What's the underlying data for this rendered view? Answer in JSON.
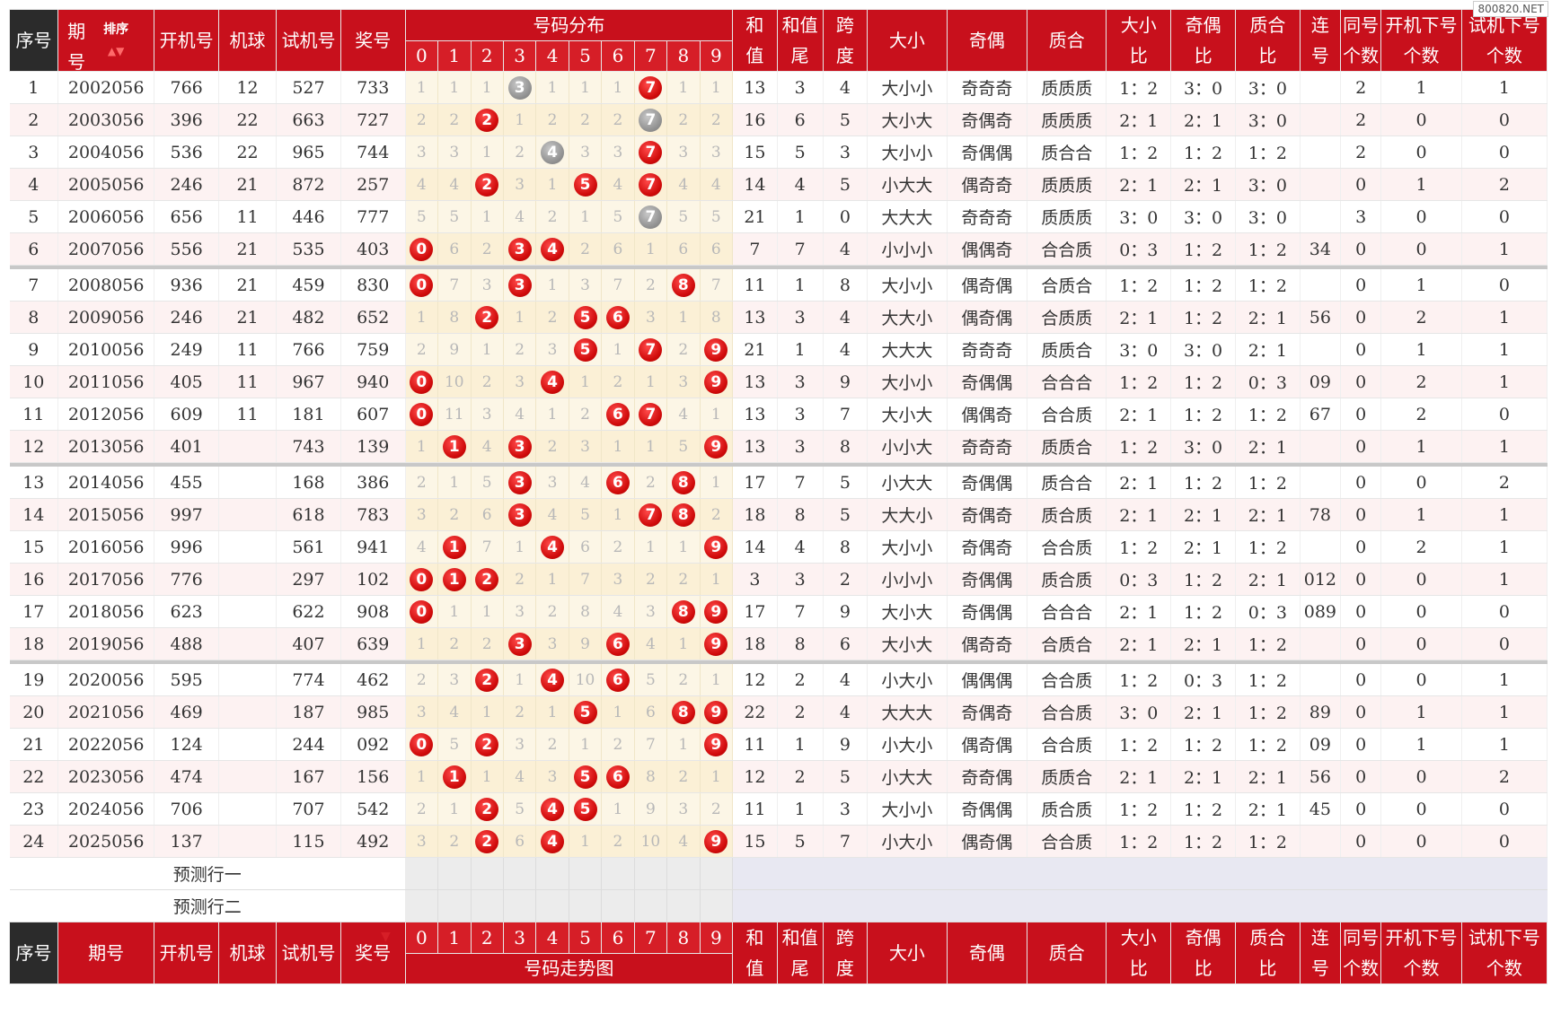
{
  "watermark": "800820.NET",
  "header": {
    "seq": "序号",
    "period_top": "期",
    "period_bottom": "号",
    "sort_label": "排序",
    "open": "开机号",
    "machine": "机球",
    "test": "试机号",
    "prize": "奖号",
    "dist_title": "号码分布",
    "sum_top": "和",
    "sum_bottom": "值",
    "tail_top": "和值",
    "tail_bottom": "尾",
    "span_top": "跨",
    "span_bottom": "度",
    "size": "大小",
    "parity": "奇偶",
    "prime": "质合",
    "r1_top": "大小",
    "r1_bottom": "比",
    "r2_top": "奇偶",
    "r2_bottom": "比",
    "r3_top": "质合",
    "r3_bottom": "比",
    "con_top": "连",
    "con_bottom": "号",
    "same_top": "同号",
    "same_bottom": "个数",
    "onext_top": "开机下号",
    "onext_bottom": "个数",
    "tnext_top": "试机下号",
    "tnext_bottom": "个数",
    "digits": [
      "0",
      "1",
      "2",
      "3",
      "4",
      "5",
      "6",
      "7",
      "8",
      "9"
    ]
  },
  "footer": {
    "seq": "序号",
    "period": "期号",
    "open": "开机号",
    "machine": "机球",
    "test": "试机号",
    "prize": "奖号",
    "dist_title": "号码走势图"
  },
  "prediction": [
    "预测行一",
    "预测行二"
  ],
  "colors": {
    "red": "#c8101c",
    "dark": "#2b2b2b",
    "ball_red": "#d40b0b",
    "ball_gray": "#8d8d8d"
  },
  "rows": [
    {
      "seq": "1",
      "period": "2002056",
      "open": "766",
      "ball": "12",
      "test": "527",
      "prize": "733",
      "dist": [
        "1",
        "1",
        "1",
        "3",
        "1",
        "1",
        "1",
        "7",
        "1",
        "1"
      ],
      "hits": {
        "3": "gray",
        "7": "red"
      },
      "sum": "13",
      "tail": "3",
      "span": "4",
      "size": "大小小",
      "parity": "奇奇奇",
      "prime": "质质质",
      "r1": "1：2",
      "r2": "3：0",
      "r3": "3：0",
      "con": "",
      "same": "2",
      "onext": "1",
      "tnext": "1"
    },
    {
      "seq": "2",
      "period": "2003056",
      "open": "396",
      "ball": "22",
      "test": "663",
      "prize": "727",
      "dist": [
        "2",
        "2",
        "2",
        "1",
        "2",
        "2",
        "2",
        "7",
        "2",
        "2"
      ],
      "hits": {
        "2": "red",
        "7": "gray"
      },
      "sum": "16",
      "tail": "6",
      "span": "5",
      "size": "大小大",
      "parity": "奇偶奇",
      "prime": "质质质",
      "r1": "2：1",
      "r2": "2：1",
      "r3": "3：0",
      "con": "",
      "same": "2",
      "onext": "0",
      "tnext": "0"
    },
    {
      "seq": "3",
      "period": "2004056",
      "open": "536",
      "ball": "22",
      "test": "965",
      "prize": "744",
      "dist": [
        "3",
        "3",
        "1",
        "2",
        "4",
        "3",
        "3",
        "7",
        "3",
        "3"
      ],
      "hits": {
        "4": "gray",
        "7": "red"
      },
      "sum": "15",
      "tail": "5",
      "span": "3",
      "size": "大小小",
      "parity": "奇偶偶",
      "prime": "质合合",
      "r1": "1：2",
      "r2": "1：2",
      "r3": "1：2",
      "con": "",
      "same": "2",
      "onext": "0",
      "tnext": "0"
    },
    {
      "seq": "4",
      "period": "2005056",
      "open": "246",
      "ball": "21",
      "test": "872",
      "prize": "257",
      "dist": [
        "4",
        "4",
        "2",
        "3",
        "1",
        "5",
        "4",
        "7",
        "4",
        "4"
      ],
      "hits": {
        "2": "red",
        "5": "red",
        "7": "red"
      },
      "sum": "14",
      "tail": "4",
      "span": "5",
      "size": "小大大",
      "parity": "偶奇奇",
      "prime": "质质质",
      "r1": "2：1",
      "r2": "2：1",
      "r3": "3：0",
      "con": "",
      "same": "0",
      "onext": "1",
      "tnext": "2"
    },
    {
      "seq": "5",
      "period": "2006056",
      "open": "656",
      "ball": "11",
      "test": "446",
      "prize": "777",
      "dist": [
        "5",
        "5",
        "1",
        "4",
        "2",
        "1",
        "5",
        "7",
        "5",
        "5"
      ],
      "hits": {
        "7": "gray"
      },
      "sum": "21",
      "tail": "1",
      "span": "0",
      "size": "大大大",
      "parity": "奇奇奇",
      "prime": "质质质",
      "r1": "3：0",
      "r2": "3：0",
      "r3": "3：0",
      "con": "",
      "same": "3",
      "onext": "0",
      "tnext": "0"
    },
    {
      "seq": "6",
      "period": "2007056",
      "open": "556",
      "ball": "21",
      "test": "535",
      "prize": "403",
      "dist": [
        "0",
        "6",
        "2",
        "3",
        "4",
        "2",
        "6",
        "1",
        "6",
        "6"
      ],
      "hits": {
        "0": "red",
        "3": "red",
        "4": "red"
      },
      "sum": "7",
      "tail": "7",
      "span": "4",
      "size": "小小小",
      "parity": "偶偶奇",
      "prime": "合合质",
      "r1": "0：3",
      "r2": "1：2",
      "r3": "1：2",
      "con": "34",
      "same": "0",
      "onext": "0",
      "tnext": "1"
    },
    {
      "seq": "7",
      "period": "2008056",
      "open": "936",
      "ball": "21",
      "test": "459",
      "prize": "830",
      "dist": [
        "0",
        "7",
        "3",
        "3",
        "1",
        "3",
        "7",
        "2",
        "8",
        "7"
      ],
      "hits": {
        "0": "red",
        "3": "red",
        "8": "red"
      },
      "sum": "11",
      "tail": "1",
      "span": "8",
      "size": "大小小",
      "parity": "偶奇偶",
      "prime": "合质合",
      "r1": "1：2",
      "r2": "1：2",
      "r3": "1：2",
      "con": "",
      "same": "0",
      "onext": "1",
      "tnext": "0"
    },
    {
      "seq": "8",
      "period": "2009056",
      "open": "246",
      "ball": "21",
      "test": "482",
      "prize": "652",
      "dist": [
        "1",
        "8",
        "2",
        "1",
        "2",
        "5",
        "6",
        "3",
        "1",
        "8"
      ],
      "hits": {
        "2": "red",
        "5": "red",
        "6": "red"
      },
      "sum": "13",
      "tail": "3",
      "span": "4",
      "size": "大大小",
      "parity": "偶奇偶",
      "prime": "合质质",
      "r1": "2：1",
      "r2": "1：2",
      "r3": "2：1",
      "con": "56",
      "same": "0",
      "onext": "2",
      "tnext": "1"
    },
    {
      "seq": "9",
      "period": "2010056",
      "open": "249",
      "ball": "11",
      "test": "766",
      "prize": "759",
      "dist": [
        "2",
        "9",
        "1",
        "2",
        "3",
        "5",
        "1",
        "7",
        "2",
        "9"
      ],
      "hits": {
        "5": "red",
        "7": "red",
        "9": "red"
      },
      "sum": "21",
      "tail": "1",
      "span": "4",
      "size": "大大大",
      "parity": "奇奇奇",
      "prime": "质质合",
      "r1": "3：0",
      "r2": "3：0",
      "r3": "2：1",
      "con": "",
      "same": "0",
      "onext": "1",
      "tnext": "1"
    },
    {
      "seq": "10",
      "period": "2011056",
      "open": "405",
      "ball": "11",
      "test": "967",
      "prize": "940",
      "dist": [
        "0",
        "10",
        "2",
        "3",
        "4",
        "1",
        "2",
        "1",
        "3",
        "9"
      ],
      "hits": {
        "0": "red",
        "4": "red",
        "9": "red"
      },
      "sum": "13",
      "tail": "3",
      "span": "9",
      "size": "大小小",
      "parity": "奇偶偶",
      "prime": "合合合",
      "r1": "1：2",
      "r2": "1：2",
      "r3": "0：3",
      "con": "09",
      "same": "0",
      "onext": "2",
      "tnext": "1"
    },
    {
      "seq": "11",
      "period": "2012056",
      "open": "609",
      "ball": "11",
      "test": "181",
      "prize": "607",
      "dist": [
        "0",
        "11",
        "3",
        "4",
        "1",
        "2",
        "6",
        "7",
        "4",
        "1"
      ],
      "hits": {
        "0": "red",
        "6": "red",
        "7": "red"
      },
      "sum": "13",
      "tail": "3",
      "span": "7",
      "size": "大小大",
      "parity": "偶偶奇",
      "prime": "合合质",
      "r1": "2：1",
      "r2": "1：2",
      "r3": "1：2",
      "con": "67",
      "same": "0",
      "onext": "2",
      "tnext": "0"
    },
    {
      "seq": "12",
      "period": "2013056",
      "open": "401",
      "ball": "",
      "test": "743",
      "prize": "139",
      "dist": [
        "1",
        "1",
        "4",
        "3",
        "2",
        "3",
        "1",
        "1",
        "5",
        "9"
      ],
      "hits": {
        "1": "red",
        "3": "red",
        "9": "red"
      },
      "sum": "13",
      "tail": "3",
      "span": "8",
      "size": "小小大",
      "parity": "奇奇奇",
      "prime": "质质合",
      "r1": "1：2",
      "r2": "3：0",
      "r3": "2：1",
      "con": "",
      "same": "0",
      "onext": "1",
      "tnext": "1"
    },
    {
      "seq": "13",
      "period": "2014056",
      "open": "455",
      "ball": "",
      "test": "168",
      "prize": "386",
      "dist": [
        "2",
        "1",
        "5",
        "3",
        "3",
        "4",
        "6",
        "2",
        "8",
        "1"
      ],
      "hits": {
        "3": "red",
        "6": "red",
        "8": "red"
      },
      "sum": "17",
      "tail": "7",
      "span": "5",
      "size": "小大大",
      "parity": "奇偶偶",
      "prime": "质合合",
      "r1": "2：1",
      "r2": "1：2",
      "r3": "1：2",
      "con": "",
      "same": "0",
      "onext": "0",
      "tnext": "2"
    },
    {
      "seq": "14",
      "period": "2015056",
      "open": "997",
      "ball": "",
      "test": "618",
      "prize": "783",
      "dist": [
        "3",
        "2",
        "6",
        "3",
        "4",
        "5",
        "1",
        "7",
        "8",
        "2"
      ],
      "hits": {
        "3": "red",
        "7": "red",
        "8": "red"
      },
      "sum": "18",
      "tail": "8",
      "span": "5",
      "size": "大大小",
      "parity": "奇偶奇",
      "prime": "质合质",
      "r1": "2：1",
      "r2": "2：1",
      "r3": "2：1",
      "con": "78",
      "same": "0",
      "onext": "1",
      "tnext": "1"
    },
    {
      "seq": "15",
      "period": "2016056",
      "open": "996",
      "ball": "",
      "test": "561",
      "prize": "941",
      "dist": [
        "4",
        "1",
        "7",
        "1",
        "4",
        "6",
        "2",
        "1",
        "1",
        "9"
      ],
      "hits": {
        "1": "red",
        "4": "red",
        "9": "red"
      },
      "sum": "14",
      "tail": "4",
      "span": "8",
      "size": "大小小",
      "parity": "奇偶奇",
      "prime": "合合质",
      "r1": "1：2",
      "r2": "2：1",
      "r3": "1：2",
      "con": "",
      "same": "0",
      "onext": "2",
      "tnext": "1"
    },
    {
      "seq": "16",
      "period": "2017056",
      "open": "776",
      "ball": "",
      "test": "297",
      "prize": "102",
      "dist": [
        "0",
        "1",
        "2",
        "2",
        "1",
        "7",
        "3",
        "2",
        "2",
        "1"
      ],
      "hits": {
        "0": "red",
        "1": "red",
        "2": "red"
      },
      "sum": "3",
      "tail": "3",
      "span": "2",
      "size": "小小小",
      "parity": "奇偶偶",
      "prime": "质合质",
      "r1": "0：3",
      "r2": "1：2",
      "r3": "2：1",
      "con": "012",
      "same": "0",
      "onext": "0",
      "tnext": "1"
    },
    {
      "seq": "17",
      "period": "2018056",
      "open": "623",
      "ball": "",
      "test": "622",
      "prize": "908",
      "dist": [
        "0",
        "1",
        "1",
        "3",
        "2",
        "8",
        "4",
        "3",
        "8",
        "9"
      ],
      "hits": {
        "0": "red",
        "8": "red",
        "9": "red"
      },
      "sum": "17",
      "tail": "7",
      "span": "9",
      "size": "大小大",
      "parity": "奇偶偶",
      "prime": "合合合",
      "r1": "2：1",
      "r2": "1：2",
      "r3": "0：3",
      "con": "089",
      "same": "0",
      "onext": "0",
      "tnext": "0"
    },
    {
      "seq": "18",
      "period": "2019056",
      "open": "488",
      "ball": "",
      "test": "407",
      "prize": "639",
      "dist": [
        "1",
        "2",
        "2",
        "3",
        "3",
        "9",
        "6",
        "4",
        "1",
        "9"
      ],
      "hits": {
        "3": "red",
        "6": "red",
        "9": "red"
      },
      "sum": "18",
      "tail": "8",
      "span": "6",
      "size": "大小大",
      "parity": "偶奇奇",
      "prime": "合质合",
      "r1": "2：1",
      "r2": "2：1",
      "r3": "1：2",
      "con": "",
      "same": "0",
      "onext": "0",
      "tnext": "0"
    },
    {
      "seq": "19",
      "period": "2020056",
      "open": "595",
      "ball": "",
      "test": "774",
      "prize": "462",
      "dist": [
        "2",
        "3",
        "2",
        "1",
        "4",
        "10",
        "6",
        "5",
        "2",
        "1"
      ],
      "hits": {
        "2": "red",
        "4": "red",
        "6": "red"
      },
      "sum": "12",
      "tail": "2",
      "span": "4",
      "size": "小大小",
      "parity": "偶偶偶",
      "prime": "合合质",
      "r1": "1：2",
      "r2": "0：3",
      "r3": "1：2",
      "con": "",
      "same": "0",
      "onext": "0",
      "tnext": "1"
    },
    {
      "seq": "20",
      "period": "2021056",
      "open": "469",
      "ball": "",
      "test": "187",
      "prize": "985",
      "dist": [
        "3",
        "4",
        "1",
        "2",
        "1",
        "5",
        "1",
        "6",
        "8",
        "9"
      ],
      "hits": {
        "5": "red",
        "8": "red",
        "9": "red"
      },
      "sum": "22",
      "tail": "2",
      "span": "4",
      "size": "大大大",
      "parity": "奇偶奇",
      "prime": "合合质",
      "r1": "3：0",
      "r2": "2：1",
      "r3": "1：2",
      "con": "89",
      "same": "0",
      "onext": "1",
      "tnext": "1"
    },
    {
      "seq": "21",
      "period": "2022056",
      "open": "124",
      "ball": "",
      "test": "244",
      "prize": "092",
      "dist": [
        "0",
        "5",
        "2",
        "3",
        "2",
        "1",
        "2",
        "7",
        "1",
        "9"
      ],
      "hits": {
        "0": "red",
        "2": "red",
        "9": "red"
      },
      "sum": "11",
      "tail": "1",
      "span": "9",
      "size": "小大小",
      "parity": "偶奇偶",
      "prime": "合合质",
      "r1": "1：2",
      "r2": "1：2",
      "r3": "1：2",
      "con": "09",
      "same": "0",
      "onext": "1",
      "tnext": "1"
    },
    {
      "seq": "22",
      "period": "2023056",
      "open": "474",
      "ball": "",
      "test": "167",
      "prize": "156",
      "dist": [
        "1",
        "1",
        "1",
        "4",
        "3",
        "5",
        "6",
        "8",
        "2",
        "1"
      ],
      "hits": {
        "1": "red",
        "5": "red",
        "6": "red"
      },
      "sum": "12",
      "tail": "2",
      "span": "5",
      "size": "小大大",
      "parity": "奇奇偶",
      "prime": "质质合",
      "r1": "2：1",
      "r2": "2：1",
      "r3": "2：1",
      "con": "56",
      "same": "0",
      "onext": "0",
      "tnext": "2"
    },
    {
      "seq": "23",
      "period": "2024056",
      "open": "706",
      "ball": "",
      "test": "707",
      "prize": "542",
      "dist": [
        "2",
        "1",
        "2",
        "5",
        "4",
        "5",
        "1",
        "9",
        "3",
        "2"
      ],
      "hits": {
        "2": "red",
        "4": "red",
        "5": "red"
      },
      "sum": "11",
      "tail": "1",
      "span": "3",
      "size": "大小小",
      "parity": "奇偶偶",
      "prime": "质合质",
      "r1": "1：2",
      "r2": "1：2",
      "r3": "2：1",
      "con": "45",
      "same": "0",
      "onext": "0",
      "tnext": "0"
    },
    {
      "seq": "24",
      "period": "2025056",
      "open": "137",
      "ball": "",
      "test": "115",
      "prize": "492",
      "dist": [
        "3",
        "2",
        "2",
        "6",
        "4",
        "1",
        "2",
        "10",
        "4",
        "9"
      ],
      "hits": {
        "2": "red",
        "4": "red",
        "9": "red"
      },
      "sum": "15",
      "tail": "5",
      "span": "7",
      "size": "小大小",
      "parity": "偶奇偶",
      "prime": "合合质",
      "r1": "1：2",
      "r2": "1：2",
      "r3": "1：2",
      "con": "",
      "same": "0",
      "onext": "0",
      "tnext": "0"
    }
  ]
}
